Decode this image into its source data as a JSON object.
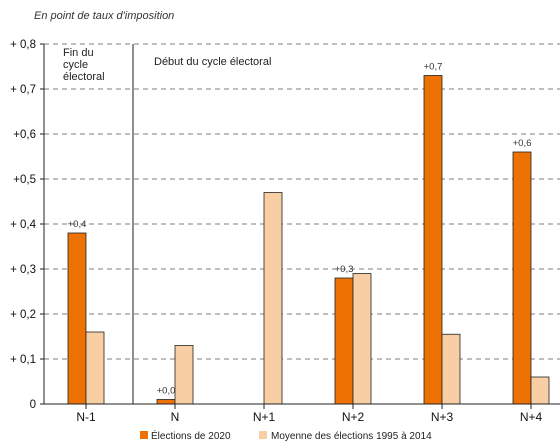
{
  "chart_data": {
    "type": "bar",
    "title": "En point de taux d'imposition",
    "categories": [
      "N-1",
      "N",
      "N+1",
      "N+2",
      "N+3",
      "N+4"
    ],
    "series": [
      {
        "name": "Élections de 2020",
        "color": "#ee7203",
        "values": [
          0.38,
          0.01,
          null,
          0.28,
          0.73,
          0.56
        ]
      },
      {
        "name": "Moyenne des élections 1995 à 2014",
        "color": "#f8cfa5",
        "values": [
          0.16,
          0.13,
          0.47,
          0.29,
          0.155,
          0.06
        ]
      }
    ],
    "data_labels": [
      "+0,4",
      "+0,0",
      "",
      "+0,3",
      "+0,7",
      "+0,6"
    ],
    "y_ticks": [
      {
        "value": 0,
        "label": "0"
      },
      {
        "value": 0.1,
        "label": "+ 0,1"
      },
      {
        "value": 0.2,
        "label": "+ 0,2"
      },
      {
        "value": 0.3,
        "label": "+ 0,3"
      },
      {
        "value": 0.4,
        "label": "+ 0,4"
      },
      {
        "value": 0.5,
        "label": "+0,5"
      },
      {
        "value": 0.6,
        "label": "+0,6"
      },
      {
        "value": 0.7,
        "label": "+ 0,7"
      },
      {
        "value": 0.8,
        "label": "+ 0,8"
      }
    ],
    "ylim": [
      0,
      0.8
    ],
    "grid": true,
    "annotations": {
      "before_line": [
        "Fin du",
        "cycle",
        "électoral"
      ],
      "after_line": "Début du cycle électoral"
    },
    "legend_position": "bottom"
  }
}
